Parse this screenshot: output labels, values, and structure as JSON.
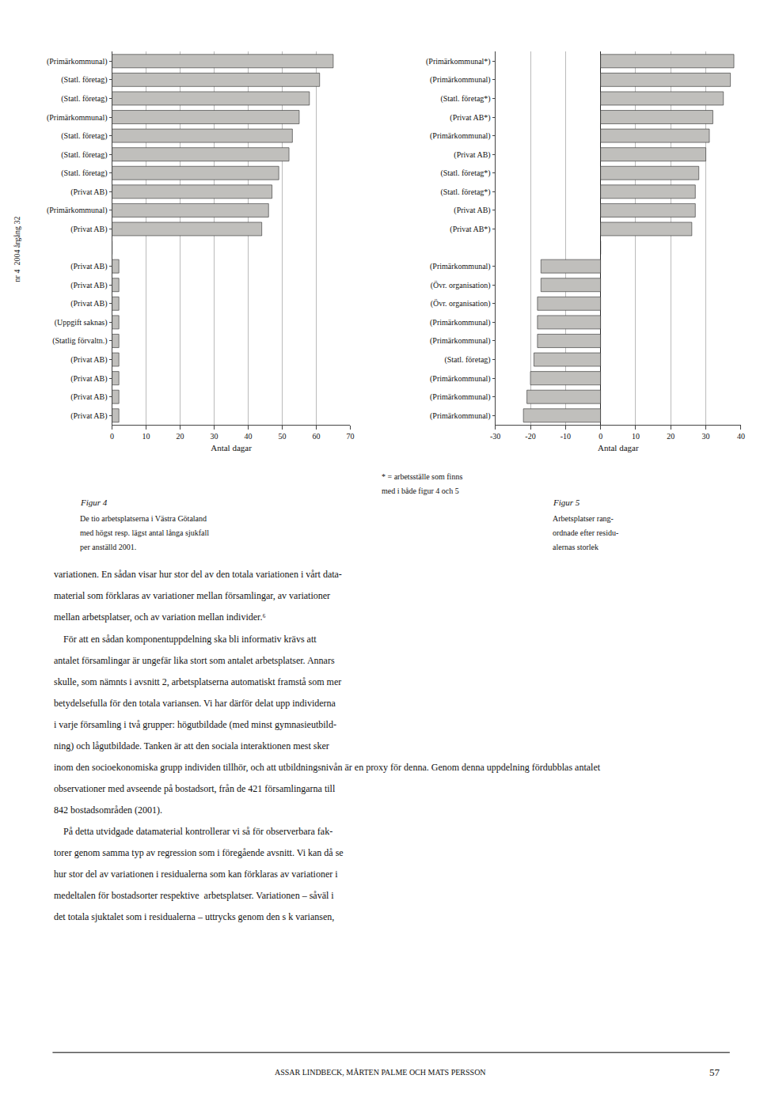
{
  "chart_data": [
    {
      "type": "bar",
      "orientation": "horizontal",
      "categories": [
        "(Primärkommunal)",
        "(Statl. företag)",
        "(Statl. företag)",
        "(Primärkommunal)",
        "(Statl. företag)",
        "(Statl. företag)",
        "(Statl. företag)",
        "(Privat AB)",
        "(Primärkommunal)",
        "(Privat AB)",
        null,
        "(Privat AB)",
        "(Privat AB)",
        "(Privat AB)",
        "(Uppgift saknas)",
        "(Statlig förvaltn.)",
        "(Privat AB)",
        "(Privat AB)",
        "(Privat AB)",
        "(Privat AB)"
      ],
      "values": [
        65,
        61,
        58,
        55,
        53,
        52,
        49,
        47,
        46,
        44,
        0,
        2,
        2,
        2,
        2,
        2,
        2,
        2,
        2,
        2
      ],
      "color": "#c0bfbc",
      "xlabel": "Antal dagar",
      "xlim": [
        0,
        70
      ],
      "xticks": [
        0,
        10,
        20,
        30,
        40,
        50,
        60,
        70
      ],
      "grid": true,
      "caption": [
        "Figur 4",
        "De tio arbetsplatserna i Västra Götaland",
        "med högst resp. lägst antal långa sjukfall",
        "per anställd 2001."
      ]
    },
    {
      "type": "bar",
      "orientation": "horizontal",
      "categories": [
        "(Primärkommunal*)",
        "(Primärkommunal)",
        "(Statl. företag*)",
        "(Privat AB*)",
        "(Primärkommunal)",
        "(Privat AB)",
        "(Statl. företag*)",
        "(Statl. företag*)",
        "(Privat AB)",
        "(Privat AB*)",
        null,
        "(Primärkommunal)",
        "(Övr. organisation)",
        "(Övr. organisation)",
        "(Primärkommunal)",
        "(Primärkommunal)",
        "(Statl. företag)",
        "(Primärkommunal)",
        "(Primärkommunal)",
        "(Primärkommunal)"
      ],
      "values": [
        38,
        37,
        35,
        32,
        31,
        30,
        28,
        27,
        27,
        26,
        0,
        -17,
        -17,
        -18,
        -18,
        -18,
        -19,
        -20,
        -21,
        -22
      ],
      "color": "#c0bfbc",
      "xlabel": "Antal dagar",
      "xlim": [
        -30,
        40
      ],
      "xticks": [
        -30,
        -20,
        -10,
        0,
        10,
        20,
        30,
        40
      ],
      "grid": true,
      "annotations": [
        "* = arbetsställe som finns",
        "med i både figur 4 och 5"
      ],
      "caption": [
        "Figur 5",
        "Arbetsplatser rang-",
        "ordnade efter residu-",
        "alernas storlek"
      ]
    }
  ],
  "sidebar_text": "nr 4  2004 årgång 32",
  "body_lines": [
    "variationen. En sådan visar hur stor del av den totala variationen i vårt data-",
    "material som förklaras av variationer mellan församlingar, av variationer",
    "mellan arbetsplatser, och av variation mellan individer.⁶",
    " För att en sådan komponentuppdelning ska bli informativ krävs att",
    "antalet församlingar är ungefär lika stort som antalet arbetsplatser. Annars",
    "skulle, som nämnts i avsnitt 2, arbetsplatserna automatiskt framstå som mer",
    "betydelsefulla för den totala variansen. Vi har därför delat upp individerna",
    "i varje församling i två grupper: högutbildade (med minst gymnasieutbild-",
    "ning) och lågutbildade. Tanken är att den sociala interaktionen mest sker",
    "inom den socioekonomiska grupp individen tillhör, och att utbildningsnivån är en proxy för denna. Genom denna uppdelning fördubblas antalet",
    "observationer med avseende på bostadsort, från de 421 församlingarna till",
    "842 bostadsområden (2001).",
    " På detta utvidgade datamaterial kontrollerar vi så för observerbara fak-",
    "torer genom samma typ av regression som i föregående avsnitt. Vi kan då se",
    "hur stor del av variationen i residualerna som kan förklaras av variationer i",
    "medeltalen för bostadsorter respektive  arbetsplatser. Variationen – såväl i",
    "det totala sjuktalet som i residualerna – uttrycks genom den s k variansen,"
  ],
  "footer_text": "ASSAR LINDBECK, MÅRTEN PALME OCH MATS PERSSON",
  "page_number": "57"
}
